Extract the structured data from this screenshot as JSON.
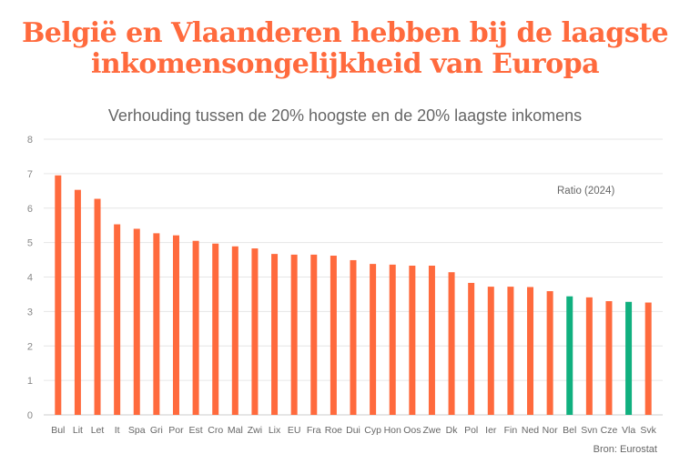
{
  "chart_data": {
    "type": "bar",
    "title": "België en Vlaanderen hebben bij de laagste inkomensongelijkheid van Europa",
    "subtitle": "Verhouding tussen de 20% hoogste en de 20% laagste inkomens",
    "legend_label": "Ratio (2024)",
    "source": "Bron: Eurostat",
    "xlabel": "",
    "ylabel": "",
    "ylim": [
      0,
      8
    ],
    "yticks": [
      0,
      1,
      2,
      3,
      4,
      5,
      6,
      7,
      8
    ],
    "grid": true,
    "categories": [
      "Bul",
      "Lit",
      "Let",
      "It",
      "Spa",
      "Gri",
      "Por",
      "Est",
      "Cro",
      "Mal",
      "Zwi",
      "Lix",
      "EU",
      "Fra",
      "Roe",
      "Dui",
      "Cyp",
      "Hon",
      "Oos",
      "Zwe",
      "Dk",
      "Pol",
      "Ier",
      "Fin",
      "Ned",
      "Nor",
      "Bel",
      "Svn",
      "Cze",
      "Vla",
      "Svk"
    ],
    "values": [
      6.95,
      6.53,
      6.27,
      5.53,
      5.4,
      5.27,
      5.21,
      5.05,
      4.97,
      4.89,
      4.83,
      4.67,
      4.65,
      4.65,
      4.62,
      4.49,
      4.38,
      4.36,
      4.33,
      4.33,
      4.14,
      3.83,
      3.72,
      3.72,
      3.71,
      3.59,
      3.44,
      3.41,
      3.3,
      3.28,
      3.26
    ],
    "highlighted": [
      "Bel",
      "Vla"
    ],
    "colors": {
      "default": "#ff6a3d",
      "highlight": "#10b07f",
      "title": "#ff6a3d"
    }
  }
}
